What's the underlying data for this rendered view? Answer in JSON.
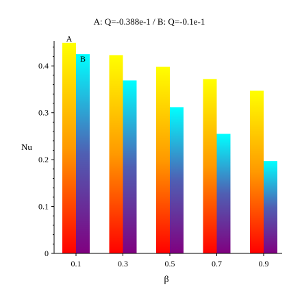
{
  "chart_data": {
    "type": "bar",
    "title": "A: Q=-0.388e-1 / B: Q=-0.1e-1",
    "xlabel": "β",
    "ylabel": "Nu",
    "categories": [
      "0.1",
      "0.3",
      "0.5",
      "0.7",
      "0.9"
    ],
    "series": [
      {
        "name": "A",
        "values": [
          0.449,
          0.423,
          0.398,
          0.372,
          0.347
        ],
        "gradient": [
          "#ffff00",
          "#ff9900",
          "#ff0000"
        ]
      },
      {
        "name": "B",
        "values": [
          0.425,
          0.369,
          0.312,
          0.255,
          0.197
        ],
        "gradient": [
          "#00ffff",
          "#4f5fb3",
          "#800080"
        ]
      }
    ],
    "ylim": [
      0,
      0.45
    ],
    "yticks": [
      "0",
      "0.1",
      "0.2",
      "0.3",
      "0.4"
    ],
    "grid": false
  }
}
